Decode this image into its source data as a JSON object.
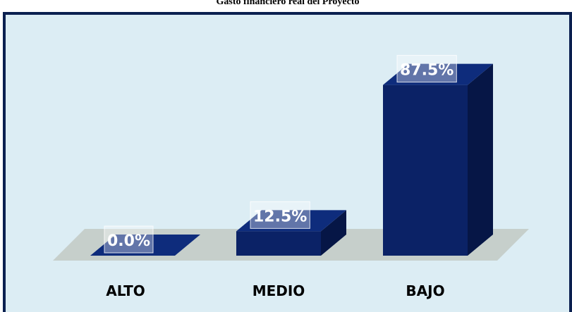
{
  "chart_data": {
    "type": "bar3d",
    "title": "Gasto financiero real del Proyecto",
    "categories": [
      "ALTO",
      "MEDIO",
      "BAJO"
    ],
    "values": [
      0,
      12.5,
      87.5
    ],
    "value_labels": [
      "0.0%",
      "12.5%",
      "87.5%"
    ],
    "color": "#0b2266"
  }
}
